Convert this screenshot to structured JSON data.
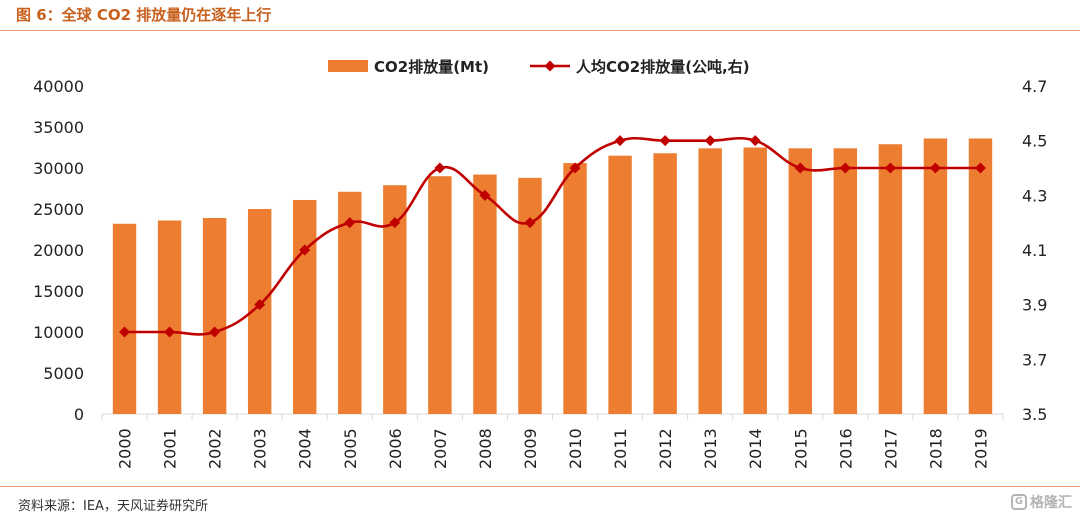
{
  "figure": {
    "title": "图 6：全球 CO2 排放量仍在逐年上行",
    "source": "资料来源：IEA，天风证券研究所",
    "watermark": "格隆汇",
    "watermark_icon": "G"
  },
  "colors": {
    "bar": "#ed7d31",
    "line": "#c00000",
    "title": "#c8601e",
    "rule": "#e8a070",
    "axis": "#d9d9d9"
  },
  "chart_data": {
    "type": "bar",
    "title": "",
    "categories": [
      "2000",
      "2001",
      "2002",
      "2003",
      "2004",
      "2005",
      "2006",
      "2007",
      "2008",
      "2009",
      "2010",
      "2011",
      "2012",
      "2013",
      "2014",
      "2015",
      "2016",
      "2017",
      "2018",
      "2019"
    ],
    "series": [
      {
        "name": "CO2排放量(Mt)",
        "type": "bar",
        "axis": "left",
        "values": [
          23200,
          23600,
          23900,
          25000,
          26100,
          27100,
          27900,
          29000,
          29200,
          28800,
          30600,
          31500,
          31800,
          32400,
          32500,
          32400,
          32400,
          32900,
          33600,
          33600
        ]
      },
      {
        "name": "人均CO2排放量(公吨,右)",
        "type": "line",
        "axis": "right",
        "marker": "diamond",
        "smooth": true,
        "values": [
          3.8,
          3.8,
          3.8,
          3.9,
          4.1,
          4.2,
          4.2,
          4.4,
          4.3,
          4.2,
          4.4,
          4.5,
          4.5,
          4.5,
          4.5,
          4.4,
          4.4,
          4.4,
          4.4,
          4.4
        ]
      }
    ],
    "y_left": {
      "ylim": [
        0,
        40000
      ],
      "ticks": [
        "0",
        "5000",
        "10000",
        "15000",
        "20000",
        "25000",
        "30000",
        "35000",
        "40000"
      ]
    },
    "y_right": {
      "ylim": [
        3.5,
        4.7
      ],
      "ticks": [
        "3.5",
        "3.7",
        "3.9",
        "4.1",
        "4.3",
        "4.5",
        "4.7"
      ]
    },
    "x_tick_rotation": "vertical",
    "legend_position": "top-center",
    "grid": false
  }
}
